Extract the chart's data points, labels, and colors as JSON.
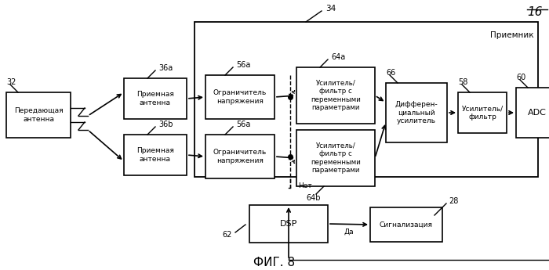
{
  "title": "ФИГ. 8",
  "fig_label": "16",
  "background": "#ffffff",
  "receiver_label": "Приемник",
  "transmit_ant_label": "Передающая\nантенна",
  "recv_ant_label": "Приемная\nантенна",
  "limiter_label": "Ограничитель\nнапряжения",
  "amp_filt_label": "Усилитель/\nфильтр с\nпеременными\nпараметрами",
  "diff_amp_label": "Дифферен-\nциальный\nусилитель",
  "amp_filter_label": "Усилитель/\nфильтр",
  "adc_label": "ADC",
  "dsp_label": "DSP",
  "signal_label": "Сигнализация",
  "net_label": "Нет",
  "da_label": "Да"
}
